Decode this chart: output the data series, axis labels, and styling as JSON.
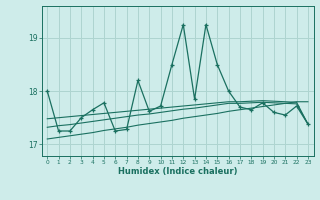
{
  "title": "",
  "xlabel": "Humidex (Indice chaleur)",
  "ylabel": "",
  "background_color": "#ceecea",
  "grid_color": "#aed4d0",
  "line_color": "#1a7060",
  "x_values": [
    0,
    1,
    2,
    3,
    4,
    5,
    6,
    7,
    8,
    9,
    10,
    11,
    12,
    13,
    14,
    15,
    16,
    17,
    18,
    19,
    20,
    21,
    22,
    23
  ],
  "main_line": [
    18.0,
    17.25,
    17.25,
    17.5,
    17.65,
    17.78,
    17.25,
    17.28,
    18.2,
    17.62,
    17.72,
    18.5,
    19.25,
    17.85,
    19.25,
    18.5,
    18.0,
    17.7,
    17.65,
    17.78,
    17.6,
    17.55,
    17.72,
    17.38
  ],
  "trend1": [
    17.1,
    17.13,
    17.16,
    17.19,
    17.22,
    17.26,
    17.29,
    17.32,
    17.36,
    17.39,
    17.42,
    17.45,
    17.49,
    17.52,
    17.55,
    17.58,
    17.62,
    17.65,
    17.68,
    17.71,
    17.74,
    17.77,
    17.8,
    17.8
  ],
  "trend2": [
    17.32,
    17.35,
    17.37,
    17.4,
    17.43,
    17.46,
    17.49,
    17.52,
    17.55,
    17.57,
    17.6,
    17.63,
    17.66,
    17.68,
    17.71,
    17.74,
    17.77,
    17.77,
    17.78,
    17.79,
    17.78,
    17.77,
    17.76,
    17.38
  ],
  "trend3": [
    17.48,
    17.5,
    17.52,
    17.54,
    17.56,
    17.58,
    17.6,
    17.62,
    17.64,
    17.66,
    17.68,
    17.7,
    17.72,
    17.74,
    17.76,
    17.78,
    17.8,
    17.8,
    17.81,
    17.82,
    17.81,
    17.8,
    17.79,
    17.38
  ],
  "ylim": [
    16.78,
    19.6
  ],
  "xlim": [
    -0.5,
    23.5
  ],
  "yticks": [
    17,
    18,
    19
  ],
  "xticks": [
    0,
    1,
    2,
    3,
    4,
    5,
    6,
    7,
    8,
    9,
    10,
    11,
    12,
    13,
    14,
    15,
    16,
    17,
    18,
    19,
    20,
    21,
    22,
    23
  ]
}
